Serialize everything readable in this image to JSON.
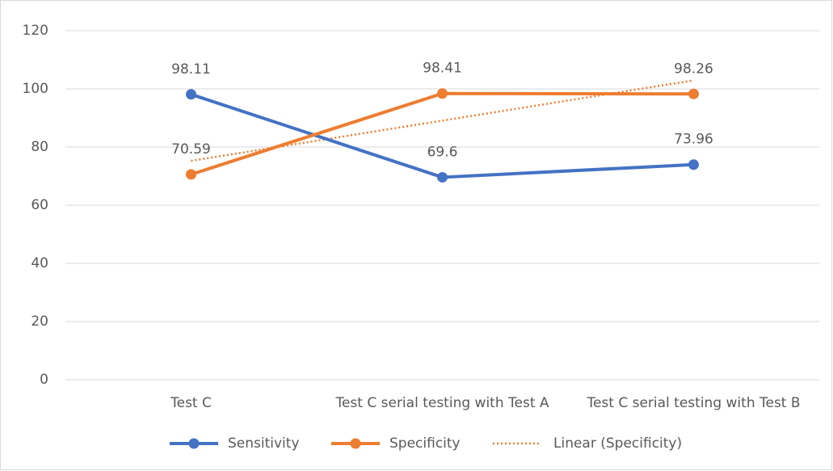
{
  "chart_data": {
    "type": "line",
    "categories": [
      "Test C",
      "Test C serial testing with Test A",
      "Test C serial testing with Test B"
    ],
    "series": [
      {
        "name": "Sensitivity",
        "color": "#4472c4",
        "values": [
          98.11,
          69.6,
          73.96
        ]
      },
      {
        "name": "Specificity",
        "color": "#ed7d31",
        "values": [
          70.59,
          98.41,
          98.26
        ]
      }
    ],
    "trendline": {
      "name": "Linear (Specificity)",
      "kind": "linear",
      "series": 1,
      "color": "#ed7d31"
    },
    "ylim": [
      0,
      120
    ],
    "yticks": [
      0,
      20,
      40,
      60,
      80,
      100,
      120
    ],
    "grid": true,
    "legend": "bottom"
  }
}
